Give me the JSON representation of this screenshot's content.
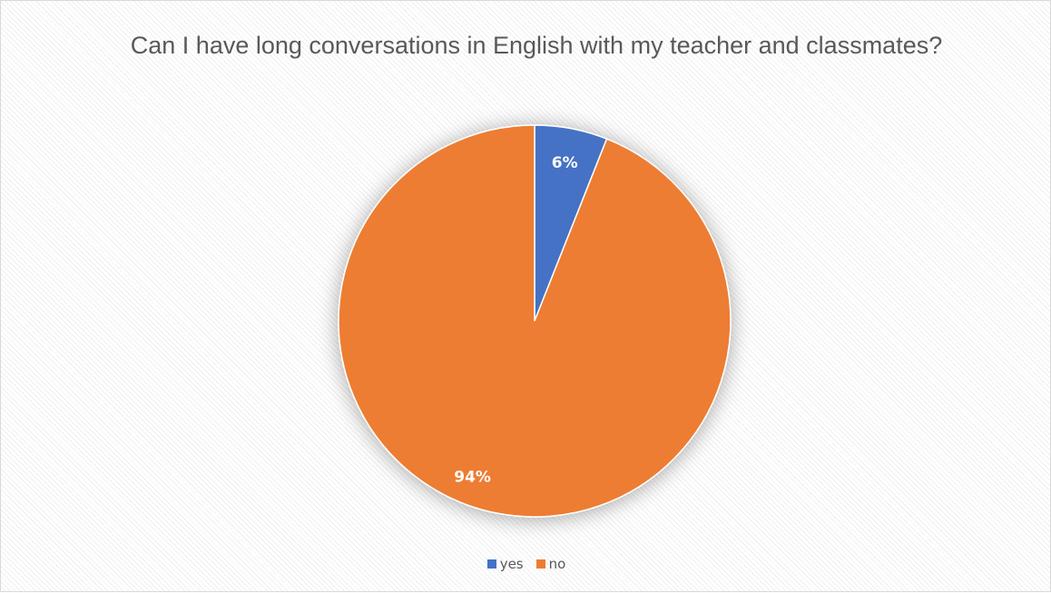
{
  "chart_data": {
    "type": "pie",
    "title": "Can I have long conversations in English with my teacher and classmates?",
    "start_angle": "12 o'clock",
    "direction": "clockwise",
    "slices": [
      {
        "name": "yes",
        "value": 6,
        "label": "6%",
        "color": "#4472C4"
      },
      {
        "name": "no",
        "value": 94,
        "label": "94%",
        "color": "#ED7D31"
      }
    ],
    "legend": {
      "position": "bottom",
      "entries": [
        "yes",
        "no"
      ]
    },
    "background": "diagonal-hatch"
  }
}
